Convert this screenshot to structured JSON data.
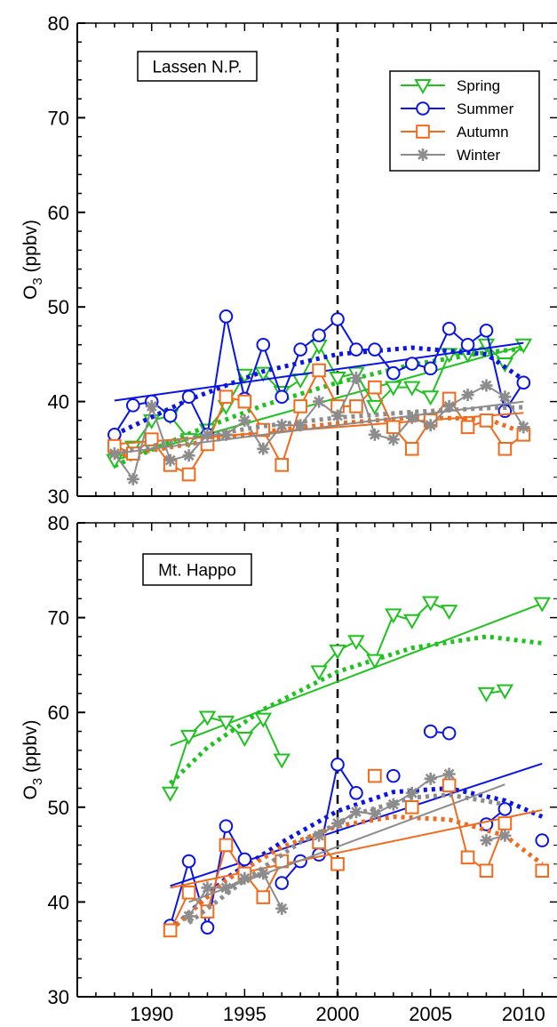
{
  "figure": {
    "x_tick_labels": [
      "1990",
      "1995",
      "2000",
      "2005",
      "2010"
    ],
    "y_tick_labels": [
      "30",
      "40",
      "50",
      "60",
      "70",
      "80"
    ],
    "ylabel_main": "O",
    "ylabel_sub": "3",
    "ylabel_unit": " (ppbv)",
    "reference_year": 2000
  },
  "colors": {
    "Spring": "#1fc21f",
    "Summer": "#0a14e6",
    "Autumn": "#f26a1b",
    "Winter": "#8c8c8c"
  },
  "chart_data": [
    {
      "type": "line",
      "title": "Lassen N.P.",
      "xlim": [
        1986,
        2011.8
      ],
      "ylim": [
        30,
        80
      ],
      "ylabel": "O3 (ppbv)",
      "legend": {
        "position": "top-right",
        "entries": [
          "Spring",
          "Summer",
          "Autumn",
          "Winter"
        ]
      },
      "vline_x": 2000,
      "series": [
        {
          "name": "Spring",
          "marker": "triangle-down",
          "x": [
            1988,
            1989,
            1990,
            1991,
            1992,
            1993,
            1994,
            1995,
            1996,
            1997,
            1998,
            1999,
            2000,
            2001,
            2002,
            2003,
            2004,
            2005,
            2006,
            2007,
            2008,
            2009,
            2010
          ],
          "y": [
            33.8,
            35.2,
            38.0,
            38.5,
            36.0,
            37.0,
            39.5,
            42.8,
            43.0,
            41.0,
            42.3,
            45.9,
            42.5,
            43.0,
            39.5,
            41.5,
            41.5,
            40.5,
            45.0,
            45.0,
            46.0,
            44.0,
            46.0
          ],
          "trend": [
            [
              1988,
              33.8
            ],
            [
              2010,
              45.9
            ]
          ],
          "fit": [
            [
              1988,
              33.2
            ],
            [
              1992,
              36.6
            ],
            [
              1996,
              39.6
            ],
            [
              2000,
              42.0
            ],
            [
              2004,
              43.9
            ],
            [
              2008,
              45.2
            ],
            [
              2010,
              45.6
            ]
          ]
        },
        {
          "name": "Summer",
          "marker": "circle",
          "x": [
            1988,
            1989,
            1990,
            1991,
            1992,
            1993,
            1994,
            1995,
            1996,
            1997,
            1998,
            1999,
            2000,
            2001,
            2002,
            2003,
            2004,
            2005,
            2006,
            2007,
            2008,
            2009,
            2010
          ],
          "y": [
            36.5,
            39.6,
            40.0,
            38.5,
            40.5,
            36.5,
            49.0,
            40.3,
            46.0,
            40.5,
            45.5,
            47.0,
            48.7,
            45.5,
            45.5,
            43.0,
            44.0,
            43.5,
            47.7,
            46.0,
            47.5,
            39.0,
            42.0
          ],
          "trend": [
            [
              1988,
              40.1
            ],
            [
              2010,
              46.2
            ]
          ],
          "fit": [
            [
              1988,
              36.5
            ],
            [
              1992,
              40.2
            ],
            [
              1996,
              43.2
            ],
            [
              2000,
              45.0
            ],
            [
              2004,
              45.7
            ],
            [
              2008,
              45.0
            ],
            [
              2010,
              42.3
            ]
          ]
        },
        {
          "name": "Autumn",
          "marker": "square",
          "x": [
            1988,
            1989,
            1990,
            1991,
            1992,
            1993,
            1994,
            1995,
            1996,
            1997,
            1998,
            1999,
            2000,
            2001,
            2002,
            2003,
            2004,
            2005,
            2006,
            2007,
            2008,
            2009,
            2010
          ],
          "y": [
            35.3,
            34.5,
            36.0,
            33.3,
            32.3,
            35.5,
            40.5,
            40.0,
            37.0,
            33.3,
            39.5,
            43.3,
            39.5,
            39.5,
            41.5,
            37.3,
            35.0,
            38.0,
            40.3,
            37.3,
            38.0,
            35.0,
            36.5
          ],
          "trend": [
            [
              1988,
              35.5
            ],
            [
              2010,
              38.8
            ]
          ],
          "fit": [
            [
              1988,
              34.2
            ],
            [
              1992,
              35.5
            ],
            [
              1996,
              36.8
            ],
            [
              2000,
              37.7
            ],
            [
              2004,
              38.3
            ],
            [
              2008,
              38.2
            ],
            [
              2010,
              36.7
            ]
          ]
        },
        {
          "name": "Winter",
          "marker": "asterisk",
          "x": [
            1988,
            1989,
            1990,
            1991,
            1992,
            1993,
            1994,
            1995,
            1996,
            1997,
            1998,
            1999,
            2000,
            2001,
            2002,
            2003,
            2004,
            2005,
            2006,
            2007,
            2008,
            2009,
            2010
          ],
          "y": [
            34.5,
            31.8,
            39.5,
            33.8,
            34.3,
            36.5,
            36.5,
            38.0,
            35.0,
            37.5,
            37.5,
            40.0,
            38.5,
            42.5,
            36.5,
            36.0,
            38.3,
            37.5,
            39.5,
            40.7,
            41.7,
            40.5,
            37.3
          ],
          "trend": [
            [
              1988,
              34.5
            ],
            [
              2010,
              40.0
            ]
          ],
          "fit": [
            [
              1988,
              34.5
            ],
            [
              1992,
              36.1
            ],
            [
              1996,
              37.4
            ],
            [
              2000,
              38.3
            ],
            [
              2004,
              38.9
            ],
            [
              2008,
              39.3
            ],
            [
              2010,
              39.4
            ]
          ]
        }
      ]
    },
    {
      "type": "line",
      "title": "Mt. Happo",
      "xlim": [
        1986,
        2011.8
      ],
      "ylim": [
        30,
        80
      ],
      "ylabel": "O3 (ppbv)",
      "vline_x": 2000,
      "series": [
        {
          "name": "Spring",
          "marker": "triangle-down",
          "x": [
            1991,
            1992,
            1993,
            1994,
            1995,
            1996,
            1997,
            null,
            1999,
            2000,
            2001,
            2002,
            2003,
            2004,
            2005,
            2006,
            null,
            2008,
            2009,
            null,
            2011
          ],
          "y": [
            51.5,
            57.5,
            59.5,
            59.0,
            57.3,
            59.3,
            55.0,
            null,
            64.3,
            66.5,
            67.5,
            65.5,
            70.3,
            69.7,
            71.6,
            70.7,
            null,
            62.0,
            62.3,
            null,
            71.5
          ],
          "trend": [
            [
              1991,
              56.5
            ],
            [
              2011,
              71.5
            ]
          ],
          "fit": [
            [
              1991,
              52.5
            ],
            [
              1993,
              56.3
            ],
            [
              1996,
              60.3
            ],
            [
              2000,
              64.3
            ],
            [
              2004,
              66.8
            ],
            [
              2008,
              68.0
            ],
            [
              2011,
              67.3
            ]
          ]
        },
        {
          "name": "Summer",
          "marker": "circle",
          "x": [
            1991,
            1992,
            1993,
            1994,
            1995,
            null,
            1997,
            1998,
            1999,
            2000,
            2001,
            null,
            2003,
            null,
            2005,
            2006,
            null,
            2008,
            2009,
            null,
            2011
          ],
          "y": [
            37.5,
            44.3,
            37.3,
            48.0,
            44.5,
            null,
            42.0,
            44.3,
            45.0,
            54.5,
            51.5,
            null,
            53.3,
            null,
            58.0,
            57.8,
            null,
            48.2,
            49.8,
            null,
            46.5
          ],
          "trend": [
            [
              1991,
              41.7
            ],
            [
              2011,
              54.6
            ]
          ],
          "fit": [
            [
              1991,
              37.0
            ],
            [
              1994,
              42.5
            ],
            [
              1997,
              46.3
            ],
            [
              2000,
              49.6
            ],
            [
              2003,
              51.6
            ],
            [
              2006,
              52.0
            ],
            [
              2009,
              50.7
            ],
            [
              2011,
              49.0
            ]
          ]
        },
        {
          "name": "Autumn",
          "marker": "square",
          "x": [
            1991,
            1992,
            1993,
            1994,
            1995,
            1996,
            1997,
            null,
            1999,
            2000,
            null,
            2002,
            null,
            2004,
            null,
            2006,
            2007,
            2008,
            2009,
            null,
            2011
          ],
          "y": [
            37.0,
            41.0,
            39.0,
            46.0,
            43.0,
            40.5,
            44.3,
            null,
            46.3,
            44.0,
            null,
            53.3,
            null,
            50.0,
            null,
            52.3,
            44.7,
            43.3,
            48.3,
            null,
            43.3
          ],
          "trend": [
            [
              1991,
              41.5
            ],
            [
              2011,
              49.7
            ]
          ],
          "fit": [
            [
              1991,
              37.0
            ],
            [
              1994,
              42.3
            ],
            [
              1997,
              45.8
            ],
            [
              2000,
              48.0
            ],
            [
              2003,
              49.0
            ],
            [
              2006,
              48.7
            ],
            [
              2009,
              47.0
            ],
            [
              2011,
              44.0
            ]
          ]
        },
        {
          "name": "Winter",
          "marker": "asterisk",
          "x": [
            null,
            1992,
            1993,
            1994,
            1995,
            1996,
            1997,
            null,
            1999,
            2000,
            2001,
            2002,
            2003,
            2004,
            2005,
            2006,
            null,
            2008,
            2009
          ],
          "y": [
            null,
            38.5,
            41.5,
            41.5,
            42.5,
            43.0,
            39.3,
            null,
            47.0,
            48.3,
            49.5,
            49.3,
            50.3,
            51.5,
            53.0,
            53.5,
            null,
            46.5,
            47.0
          ],
          "trend": [
            [
              1992,
              40.0
            ],
            [
              2009,
              52.4
            ]
          ],
          "fit": [
            [
              1992,
              37.8
            ],
            [
              1995,
              42.3
            ],
            [
              1998,
              46.3
            ],
            [
              2001,
              49.3
            ],
            [
              2004,
              51.0
            ],
            [
              2006,
              51.3
            ],
            [
              2009,
              50.3
            ]
          ]
        }
      ]
    }
  ]
}
